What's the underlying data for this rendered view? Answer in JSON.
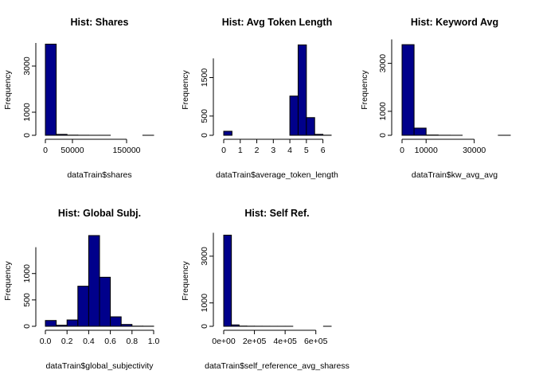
{
  "chart_data": [
    {
      "type": "bar",
      "title": "Hist: Shares",
      "xlabel": "dataTrain$shares",
      "ylabel": "Frequency",
      "xlim": [
        0,
        200000
      ],
      "x_ticks": [
        {
          "v": 0,
          "label": "0"
        },
        {
          "v": 50000,
          "label": "50000"
        },
        {
          "v": 150000,
          "label": "150000"
        }
      ],
      "y_ticks": [
        {
          "v": 0,
          "label": "0"
        },
        {
          "v": 1000,
          "label": "1000"
        },
        {
          "v": 3000,
          "label": "3000"
        }
      ],
      "bins": [
        {
          "x0": 0,
          "x1": 20000,
          "count": 3950
        },
        {
          "x0": 20000,
          "x1": 40000,
          "count": 40
        },
        {
          "x0": 40000,
          "x1": 60000,
          "count": 8
        },
        {
          "x0": 60000,
          "x1": 80000,
          "count": 3
        },
        {
          "x0": 80000,
          "x1": 100000,
          "count": 1
        },
        {
          "x0": 100000,
          "x1": 120000,
          "count": 1
        },
        {
          "x0": 120000,
          "x1": 140000,
          "count": 0
        },
        {
          "x0": 140000,
          "x1": 160000,
          "count": 0
        },
        {
          "x0": 160000,
          "x1": 180000,
          "count": 0
        },
        {
          "x0": 180000,
          "x1": 200000,
          "count": 1
        }
      ]
    },
    {
      "type": "bar",
      "title": "Hist: Avg Token Length",
      "xlabel": "dataTrain$average_token_length",
      "ylabel": "Frequency",
      "xlim": [
        0,
        6.5
      ],
      "x_ticks": [
        {
          "v": 0,
          "label": "0"
        },
        {
          "v": 1,
          "label": "1"
        },
        {
          "v": 2,
          "label": "2"
        },
        {
          "v": 3,
          "label": "3"
        },
        {
          "v": 4,
          "label": "4"
        },
        {
          "v": 5,
          "label": "5"
        },
        {
          "v": 6,
          "label": "6"
        }
      ],
      "y_ticks": [
        {
          "v": 0,
          "label": "0"
        },
        {
          "v": 500,
          "label": "500"
        },
        {
          "v": 1500,
          "label": "1500"
        }
      ],
      "bins": [
        {
          "x0": 0,
          "x1": 0.5,
          "count": 105
        },
        {
          "x0": 0.5,
          "x1": 4,
          "count": 0
        },
        {
          "x0": 4,
          "x1": 4.5,
          "count": 1020
        },
        {
          "x0": 4.5,
          "x1": 5,
          "count": 2350
        },
        {
          "x0": 5,
          "x1": 5.5,
          "count": 460
        },
        {
          "x0": 5.5,
          "x1": 6,
          "count": 25
        },
        {
          "x0": 6,
          "x1": 6.5,
          "count": 3
        }
      ]
    },
    {
      "type": "bar",
      "title": "Hist: Keyword Avg",
      "xlabel": "dataTrain$kw_avg_avg",
      "ylabel": "Frequency",
      "xlim": [
        0,
        45000
      ],
      "x_ticks": [
        {
          "v": 0,
          "label": "0"
        },
        {
          "v": 10000,
          "label": "10000"
        },
        {
          "v": 30000,
          "label": "30000"
        }
      ],
      "y_ticks": [
        {
          "v": 0,
          "label": "0"
        },
        {
          "v": 1000,
          "label": "1000"
        },
        {
          "v": 3000,
          "label": "3000"
        }
      ],
      "bins": [
        {
          "x0": 0,
          "x1": 5000,
          "count": 3780
        },
        {
          "x0": 5000,
          "x1": 10000,
          "count": 300
        },
        {
          "x0": 10000,
          "x1": 15000,
          "count": 12
        },
        {
          "x0": 15000,
          "x1": 20000,
          "count": 3
        },
        {
          "x0": 20000,
          "x1": 25000,
          "count": 1
        },
        {
          "x0": 25000,
          "x1": 30000,
          "count": 0
        },
        {
          "x0": 30000,
          "x1": 35000,
          "count": 0
        },
        {
          "x0": 35000,
          "x1": 40000,
          "count": 0
        },
        {
          "x0": 40000,
          "x1": 45000,
          "count": 1
        }
      ]
    },
    {
      "type": "bar",
      "title": "Hist: Global Subj.",
      "xlabel": "dataTrain$global_subjectivity",
      "ylabel": "Frequency",
      "xlim": [
        0,
        1
      ],
      "x_ticks": [
        {
          "v": 0,
          "label": "0.0"
        },
        {
          "v": 0.2,
          "label": "0.2"
        },
        {
          "v": 0.4,
          "label": "0.4"
        },
        {
          "v": 0.6,
          "label": "0.6"
        },
        {
          "v": 0.8,
          "label": "0.8"
        },
        {
          "v": 1.0,
          "label": "1.0"
        }
      ],
      "y_ticks": [
        {
          "v": 0,
          "label": "0"
        },
        {
          "v": 500,
          "label": "500"
        },
        {
          "v": 1000,
          "label": "1000"
        }
      ],
      "bins": [
        {
          "x0": 0,
          "x1": 0.1,
          "count": 110
        },
        {
          "x0": 0.1,
          "x1": 0.2,
          "count": 20
        },
        {
          "x0": 0.2,
          "x1": 0.3,
          "count": 120
        },
        {
          "x0": 0.3,
          "x1": 0.4,
          "count": 760
        },
        {
          "x0": 0.4,
          "x1": 0.5,
          "count": 1720
        },
        {
          "x0": 0.5,
          "x1": 0.6,
          "count": 930
        },
        {
          "x0": 0.6,
          "x1": 0.7,
          "count": 180
        },
        {
          "x0": 0.7,
          "x1": 0.8,
          "count": 35
        },
        {
          "x0": 0.8,
          "x1": 0.9,
          "count": 3
        },
        {
          "x0": 0.9,
          "x1": 1.0,
          "count": 2
        }
      ]
    },
    {
      "type": "bar",
      "title": "Hist: Self Ref.",
      "xlabel": "dataTrain$self_reference_avg_sharess",
      "ylabel": "Frequency",
      "xlim": [
        0,
        700000
      ],
      "x_ticks": [
        {
          "v": 0,
          "label": "0e+00"
        },
        {
          "v": 200000,
          "label": "2e+05"
        },
        {
          "v": 400000,
          "label": "4e+05"
        },
        {
          "v": 600000,
          "label": "6e+05"
        }
      ],
      "y_ticks": [
        {
          "v": 0,
          "label": "0"
        },
        {
          "v": 1000,
          "label": "1000"
        },
        {
          "v": 3000,
          "label": "3000"
        }
      ],
      "bins": [
        {
          "x0": 0,
          "x1": 50000,
          "count": 3900
        },
        {
          "x0": 50000,
          "x1": 100000,
          "count": 60
        },
        {
          "x0": 100000,
          "x1": 150000,
          "count": 10
        },
        {
          "x0": 150000,
          "x1": 200000,
          "count": 5
        },
        {
          "x0": 200000,
          "x1": 250000,
          "count": 3
        },
        {
          "x0": 250000,
          "x1": 300000,
          "count": 2
        },
        {
          "x0": 300000,
          "x1": 350000,
          "count": 1
        },
        {
          "x0": 350000,
          "x1": 400000,
          "count": 1
        },
        {
          "x0": 400000,
          "x1": 450000,
          "count": 1
        },
        {
          "x0": 450000,
          "x1": 500000,
          "count": 0
        },
        {
          "x0": 500000,
          "x1": 550000,
          "count": 0
        },
        {
          "x0": 550000,
          "x1": 600000,
          "count": 0
        },
        {
          "x0": 600000,
          "x1": 650000,
          "count": 0
        },
        {
          "x0": 650000,
          "x1": 700000,
          "count": 1
        }
      ]
    }
  ]
}
